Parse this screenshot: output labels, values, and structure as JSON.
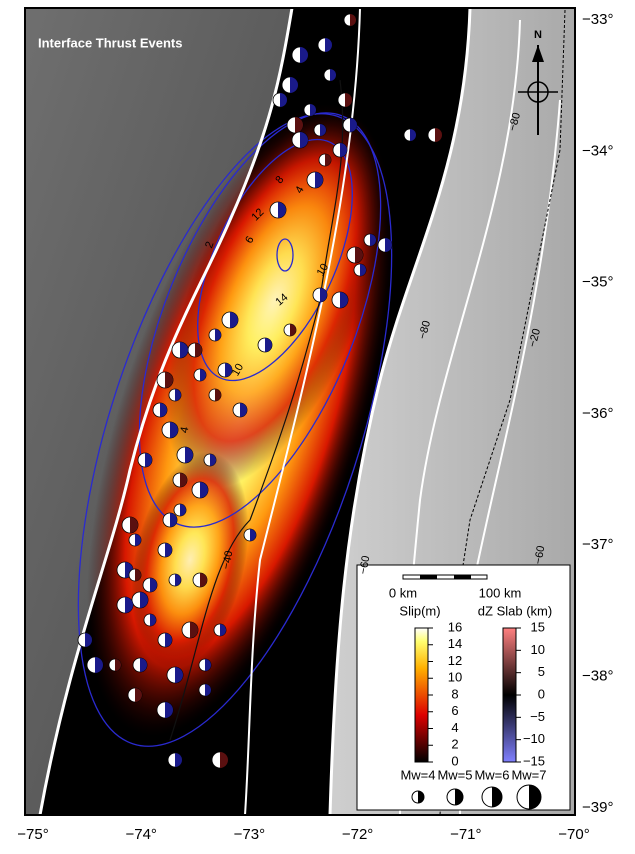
{
  "map": {
    "title": "Interface Thrust Events",
    "north": "N",
    "lat_labels": [
      "−33°",
      "−34°",
      "−35°",
      "−36°",
      "−37°",
      "−38°",
      "−39°"
    ],
    "lon_labels": [
      "−75°",
      "−74°",
      "−73°",
      "−72°",
      "−71°",
      "−70°"
    ],
    "contour_labels": [
      "−80",
      "−80",
      "−20",
      "−40",
      "14",
      "12",
      "10",
      "8",
      "6",
      "4",
      "2",
      "10",
      "4",
      "−60",
      "−60"
    ]
  },
  "legend": {
    "scale": [
      "0 km",
      "100 km"
    ],
    "slip": {
      "title": "Slip(m)",
      "ticks": [
        "16",
        "14",
        "12",
        "10",
        "8",
        "6",
        "4",
        "2",
        "0"
      ]
    },
    "dz": {
      "title": "dZ Slab (km)",
      "ticks": [
        "15",
        "10",
        "5",
        "0",
        "−5",
        "−10",
        "−15"
      ]
    },
    "magnitudes": [
      "Mw=4",
      "Mw=5",
      "Mw=6",
      "Mw=7"
    ]
  }
}
